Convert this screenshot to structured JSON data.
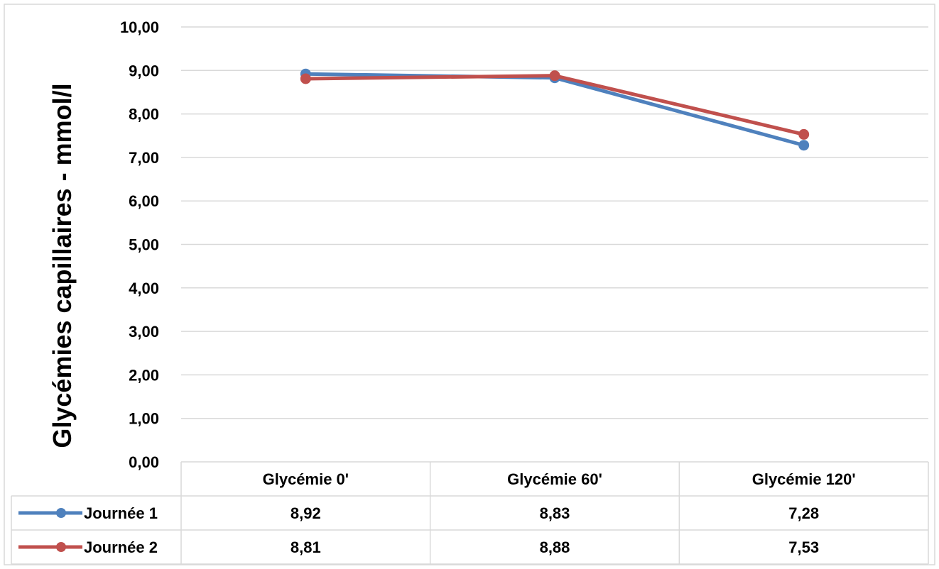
{
  "chart_data": {
    "type": "line",
    "title": "",
    "xlabel": "",
    "ylabel": "Glycémies capillaires - mmol/l",
    "categories": [
      "Glycémie 0'",
      "Glycémie 60'",
      "Glycémie 120'"
    ],
    "series": [
      {
        "name": "Journée 1",
        "color": "#4f81bd",
        "values": [
          8.92,
          8.83,
          7.28
        ],
        "labels": [
          "8,92",
          "8,83",
          "7,28"
        ]
      },
      {
        "name": "Journée 2",
        "color": "#c0504d",
        "values": [
          8.81,
          8.88,
          7.53
        ],
        "labels": [
          "8,81",
          "8,88",
          "7,53"
        ]
      }
    ],
    "ylim": [
      0,
      10
    ],
    "yticks": [
      0,
      1,
      2,
      3,
      4,
      5,
      6,
      7,
      8,
      9,
      10
    ],
    "ytick_labels": [
      "0,00",
      "1,00",
      "2,00",
      "3,00",
      "4,00",
      "5,00",
      "6,00",
      "7,00",
      "8,00",
      "9,00",
      "10,00"
    ],
    "grid": true,
    "legend": "data-table",
    "gridline_color": "#d9d9d9",
    "border_color": "#d9d9d9"
  }
}
